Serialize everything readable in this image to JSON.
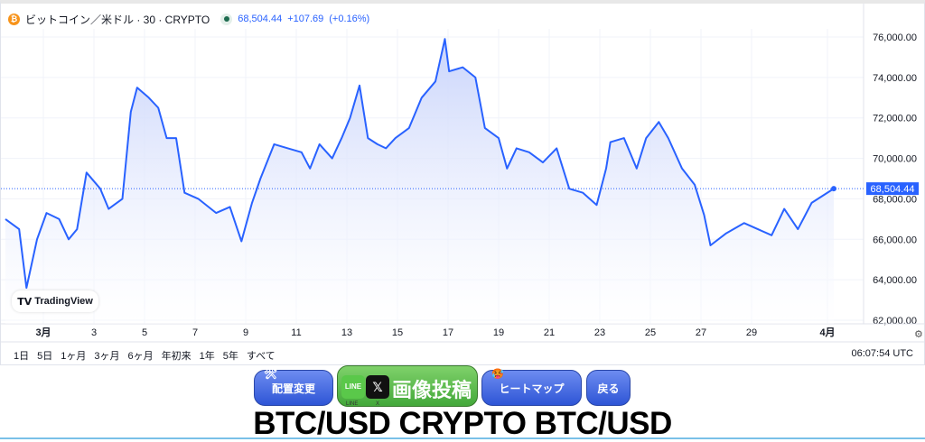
{
  "header": {
    "symbol_icon": "bitcoin-icon",
    "title": "ビットコイン／米ドル · 30 · CRYPTO",
    "market_status_icon": "market-open-dot",
    "price": "68,504.44",
    "change": "+107.69",
    "change_pct": "(+0.16%)"
  },
  "logo": "TradingView",
  "ranges": [
    "1日",
    "5日",
    "1ヶ月",
    "3ヶ月",
    "6ヶ月",
    "年初来",
    "1年",
    "5年",
    "すべて"
  ],
  "clock": "06:07:54 UTC",
  "last_price_label": "68,504.44",
  "buttons": {
    "layout": "配置変更",
    "post": "画像投稿",
    "line": "LINE",
    "x": "X",
    "heatmap": "ヒートマップ",
    "back": "戻る"
  },
  "page_title": "BTC/USD CRYPTO BTC/USD",
  "colors": {
    "line": "#2962ff",
    "area_top": "#c9d4fb",
    "accent": "#2962ff",
    "post_button": "#4caf3f",
    "nav_button": "#3a5fe0"
  },
  "chart_data": {
    "type": "area",
    "title": "ビットコイン／米ドル · 30 · CRYPTO",
    "xlabel": "",
    "ylabel": "",
    "ylim": [
      62000,
      76000
    ],
    "y_ticks": [
      "62,000.00",
      "64,000.00",
      "66,000.00",
      "68,000.00",
      "70,000.00",
      "72,000.00",
      "74,000.00",
      "76,000.00"
    ],
    "x_ticks": [
      {
        "label": "3月",
        "date": "03-01"
      },
      {
        "label": "3",
        "date": "03-03"
      },
      {
        "label": "5",
        "date": "03-05"
      },
      {
        "label": "7",
        "date": "03-07"
      },
      {
        "label": "9",
        "date": "03-09"
      },
      {
        "label": "11",
        "date": "03-11"
      },
      {
        "label": "13",
        "date": "03-13"
      },
      {
        "label": "15",
        "date": "03-15"
      },
      {
        "label": "17",
        "date": "03-17"
      },
      {
        "label": "19",
        "date": "03-19"
      },
      {
        "label": "21",
        "date": "03-21"
      },
      {
        "label": "23",
        "date": "03-23"
      },
      {
        "label": "25",
        "date": "03-25"
      },
      {
        "label": "27",
        "date": "03-27"
      },
      {
        "label": "29",
        "date": "03-29"
      },
      {
        "label": "4月",
        "date": "04-01"
      }
    ],
    "grid": true,
    "last_value": 68504.44,
    "points": [
      [
        "02-28 12:00",
        67000
      ],
      [
        "02-29 01:00",
        66500
      ],
      [
        "02-29 08:00",
        63600
      ],
      [
        "02-29 18:00",
        66000
      ],
      [
        "03-01 03:00",
        67300
      ],
      [
        "03-01 15:00",
        67000
      ],
      [
        "03-02 00:00",
        66000
      ],
      [
        "03-02 08:00",
        66500
      ],
      [
        "03-02 17:00",
        69300
      ],
      [
        "03-03 06:00",
        68500
      ],
      [
        "03-03 14:00",
        67500
      ],
      [
        "03-04 03:00",
        68000
      ],
      [
        "03-04 11:00",
        72300
      ],
      [
        "03-04 17:00",
        73500
      ],
      [
        "03-05 04:00",
        73000
      ],
      [
        "03-05 13:00",
        72500
      ],
      [
        "03-05 21:00",
        71000
      ],
      [
        "03-06 06:00",
        71000
      ],
      [
        "03-06 14:00",
        68300
      ],
      [
        "03-07 03:00",
        68000
      ],
      [
        "03-07 20:00",
        67300
      ],
      [
        "03-08 09:00",
        67600
      ],
      [
        "03-08 20:00",
        65900
      ],
      [
        "03-09 06:00",
        67800
      ],
      [
        "03-09 14:00",
        69000
      ],
      [
        "03-10 03:00",
        70700
      ],
      [
        "03-10 16:00",
        70500
      ],
      [
        "03-11 05:00",
        70300
      ],
      [
        "03-11 13:00",
        69500
      ],
      [
        "03-11 22:00",
        70700
      ],
      [
        "03-12 10:00",
        70000
      ],
      [
        "03-12 19:00",
        71000
      ],
      [
        "03-13 03:00",
        72000
      ],
      [
        "03-13 12:00",
        73600
      ],
      [
        "03-13 20:00",
        71000
      ],
      [
        "03-14 05:00",
        70700
      ],
      [
        "03-14 13:00",
        70500
      ],
      [
        "03-14 22:00",
        71000
      ],
      [
        "03-15 11:00",
        71500
      ],
      [
        "03-15 23:00",
        73000
      ],
      [
        "03-16 12:00",
        73800
      ],
      [
        "03-16 21:00",
        75900
      ],
      [
        "03-17 01:00",
        74300
      ],
      [
        "03-17 14:00",
        74500
      ],
      [
        "03-18 02:00",
        74000
      ],
      [
        "03-18 11:00",
        71500
      ],
      [
        "03-19 00:00",
        71000
      ],
      [
        "03-19 08:00",
        69500
      ],
      [
        "03-19 17:00",
        70500
      ],
      [
        "03-20 05:00",
        70300
      ],
      [
        "03-20 18:00",
        69800
      ],
      [
        "03-21 07:00",
        70500
      ],
      [
        "03-21 19:00",
        68500
      ],
      [
        "03-22 08:00",
        68300
      ],
      [
        "03-22 21:00",
        67700
      ],
      [
        "03-23 06:00",
        69500
      ],
      [
        "03-23 10:00",
        70800
      ],
      [
        "03-23 23:00",
        71000
      ],
      [
        "03-24 11:00",
        69500
      ],
      [
        "03-24 20:00",
        71000
      ],
      [
        "03-25 08:00",
        71800
      ],
      [
        "03-25 17:00",
        71000
      ],
      [
        "03-26 06:00",
        69500
      ],
      [
        "03-26 18:00",
        68700
      ],
      [
        "03-27 03:00",
        67200
      ],
      [
        "03-27 09:00",
        65700
      ],
      [
        "03-28 00:00",
        66300
      ],
      [
        "03-28 17:00",
        66800
      ],
      [
        "03-29 06:00",
        66500
      ],
      [
        "03-29 19:00",
        66200
      ],
      [
        "03-30 07:00",
        67500
      ],
      [
        "03-30 20:00",
        66500
      ],
      [
        "03-31 09:00",
        67800
      ],
      [
        "04-01 06:00",
        68504.44
      ]
    ]
  }
}
